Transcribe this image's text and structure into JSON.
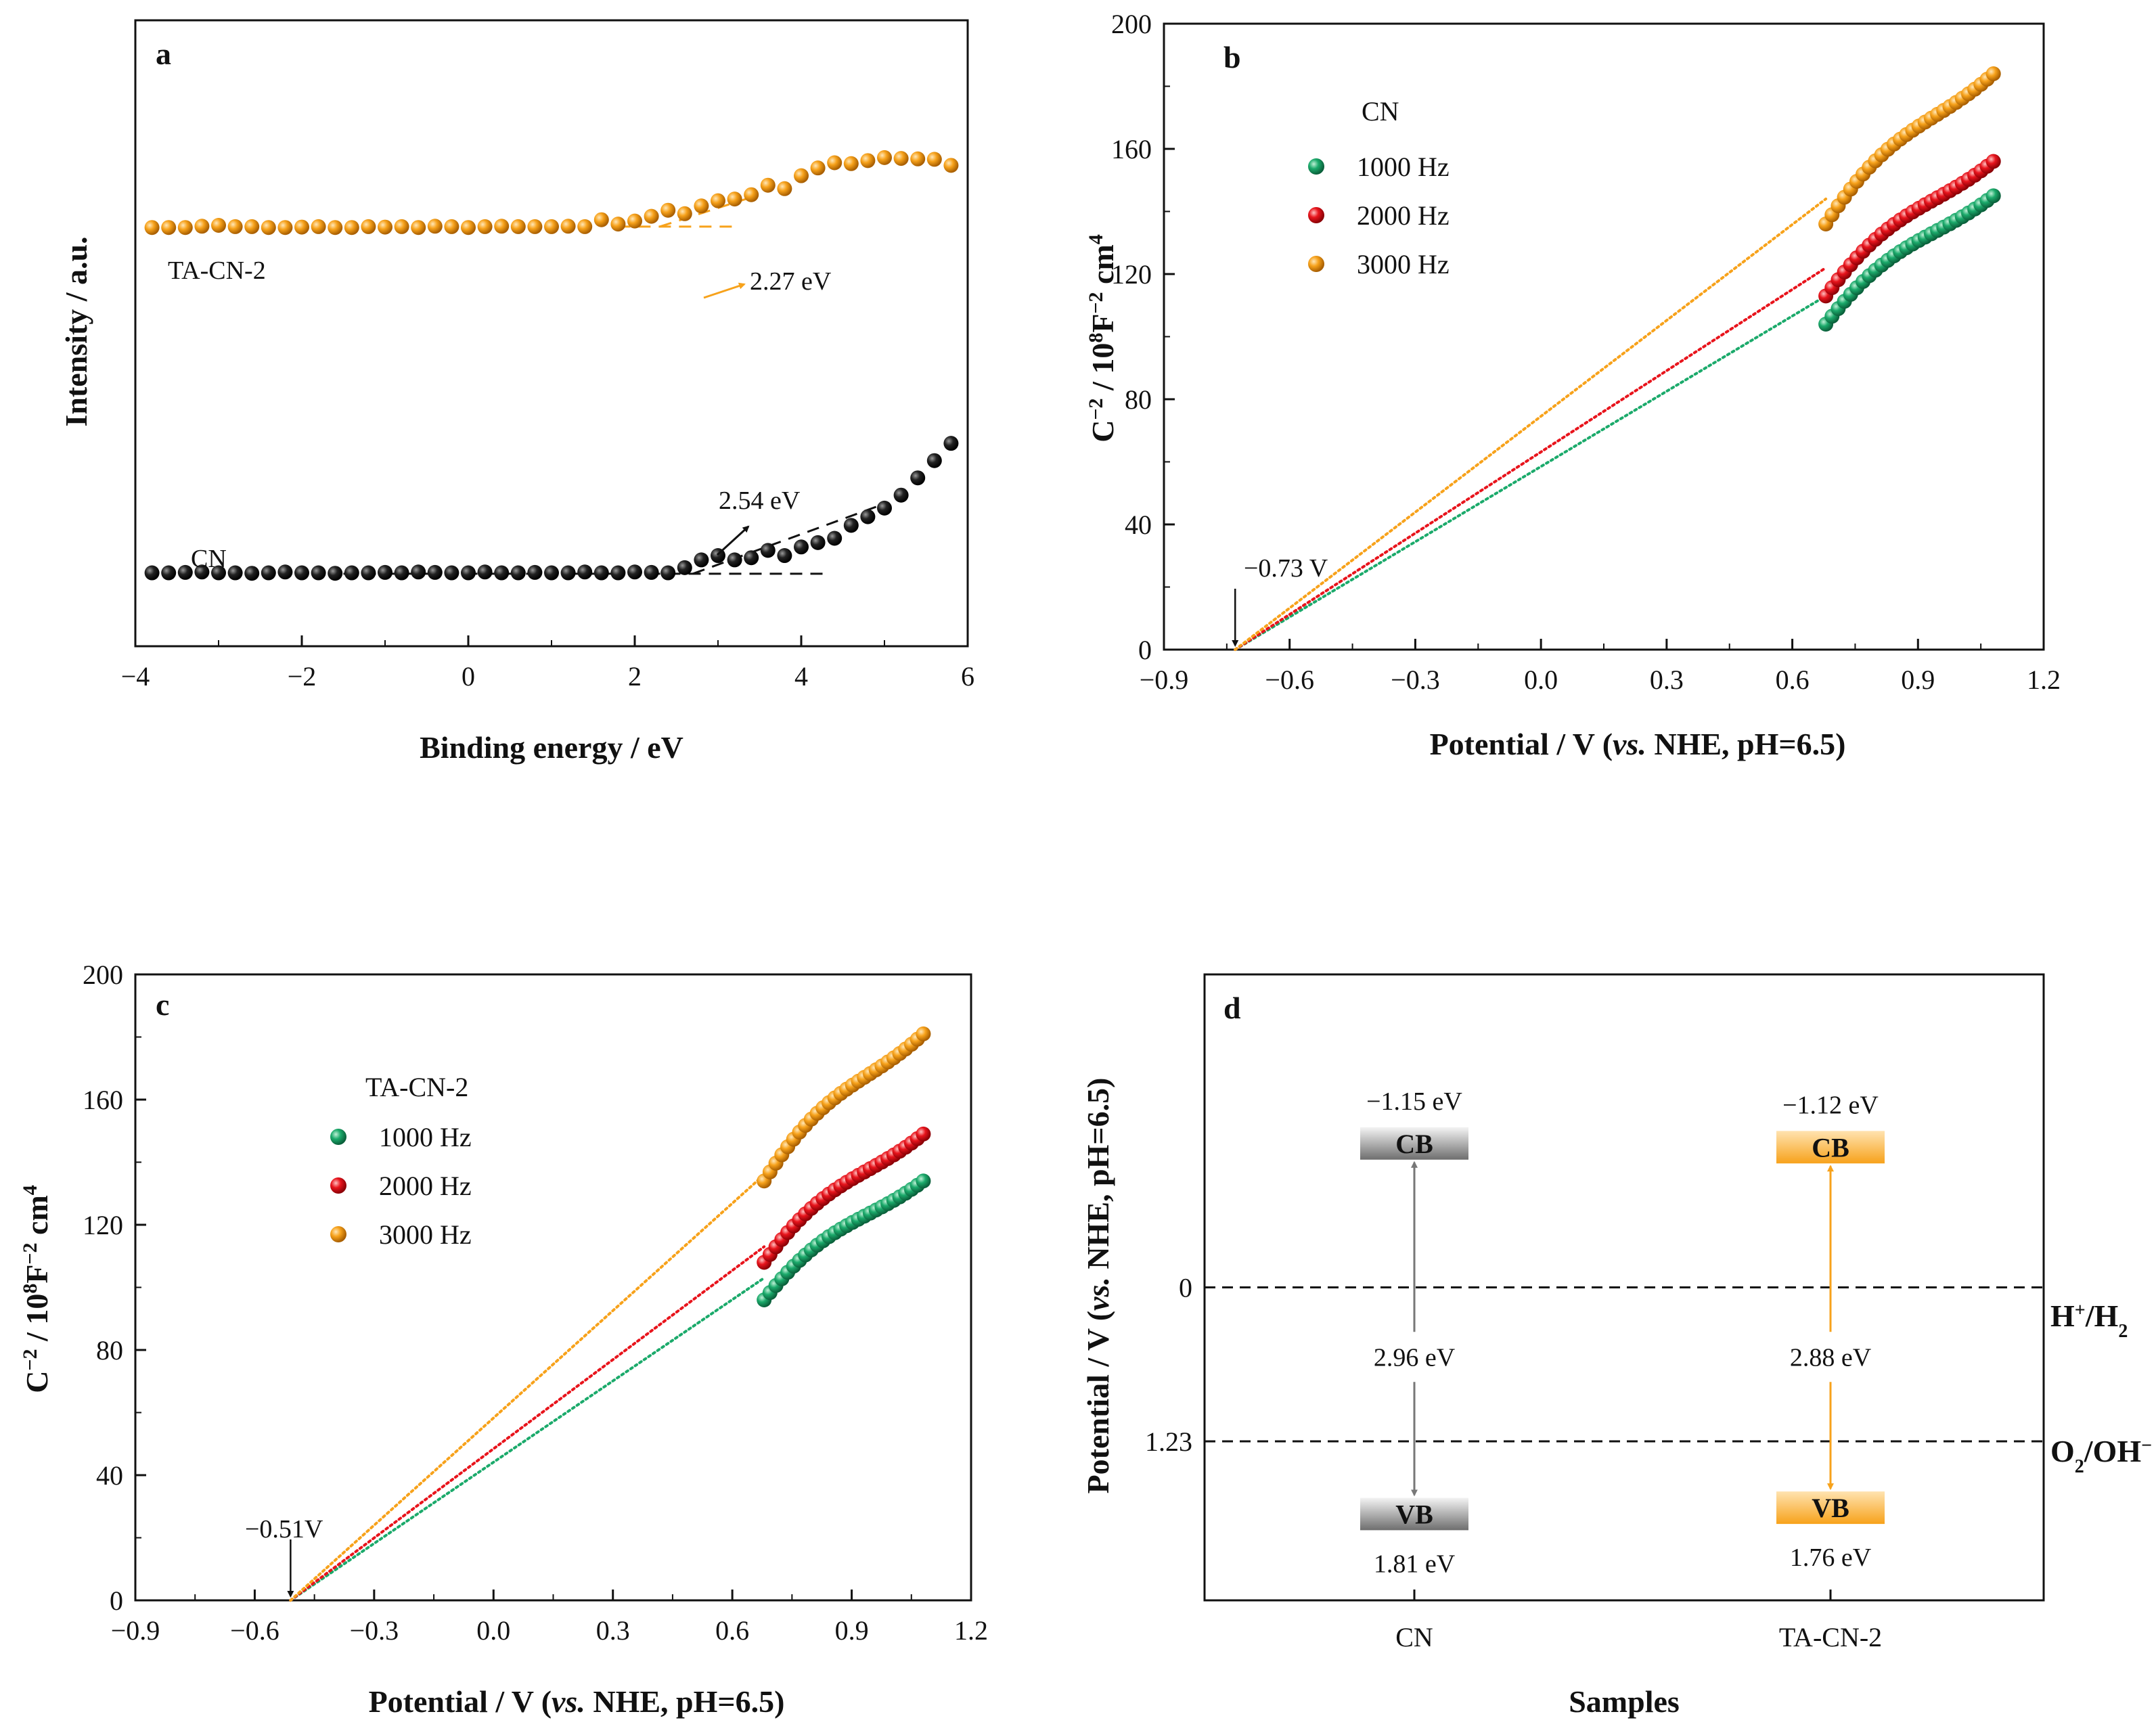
{
  "colors": {
    "cn_black": "#111111",
    "ta_orange": "#F7A21B",
    "green": "#1BAA6B",
    "red": "#E8141C",
    "orange": "#F7A21B",
    "cn_band": "#8c8c8c",
    "ta_band": "#F7A21B"
  },
  "chart_data": [
    {
      "id": "a",
      "type": "scatter",
      "panel_letter": "a",
      "xlabel": "Binding energy / eV",
      "ylabel": "Intensity / a.u.",
      "xlim": [
        -4,
        6
      ],
      "ylim": [
        -0.15,
        1.3
      ],
      "xticks": [
        "−4",
        "−2",
        "0",
        "2",
        "4",
        "6"
      ],
      "xtick_values": [
        -4,
        -2,
        0,
        2,
        4,
        6
      ],
      "series": [
        {
          "name": "TA-CN-2",
          "label": "TA-CN-2",
          "color": "orange",
          "x": [
            -3.8,
            -3.6,
            -3.4,
            -3.2,
            -3.0,
            -2.8,
            -2.6,
            -2.4,
            -2.2,
            -2.0,
            -1.8,
            -1.6,
            -1.4,
            -1.2,
            -1.0,
            -0.8,
            -0.6,
            -0.4,
            -0.2,
            0.0,
            0.2,
            0.4,
            0.6,
            0.8,
            1.0,
            1.2,
            1.4,
            1.6,
            1.8,
            2.0,
            2.2,
            2.4,
            2.6,
            2.8,
            3.0,
            3.2,
            3.4,
            3.6,
            3.8,
            4.0,
            4.2,
            4.4,
            4.6,
            4.8,
            5.0,
            5.2,
            5.4,
            5.6,
            5.8
          ],
          "y": [
            0.82,
            0.82,
            0.82,
            0.823,
            0.825,
            0.822,
            0.822,
            0.82,
            0.82,
            0.821,
            0.822,
            0.82,
            0.82,
            0.822,
            0.821,
            0.822,
            0.82,
            0.823,
            0.822,
            0.82,
            0.822,
            0.823,
            0.822,
            0.822,
            0.822,
            0.823,
            0.822,
            0.838,
            0.828,
            0.835,
            0.846,
            0.86,
            0.852,
            0.87,
            0.882,
            0.886,
            0.896,
            0.918,
            0.91,
            0.94,
            0.958,
            0.97,
            0.968,
            0.975,
            0.982,
            0.98,
            0.979,
            0.978,
            0.964
          ],
          "annotation": "2.27 eV",
          "tangent": [
            [
              1.8,
              0.822
            ],
            [
              3.2,
              0.822
            ]
          ],
          "slope": [
            [
              2.3,
              0.822
            ],
            [
              3.4,
              0.89
            ]
          ]
        },
        {
          "name": "CN",
          "label": "CN",
          "color": "cn_black",
          "x": [
            -3.8,
            -3.6,
            -3.4,
            -3.2,
            -3.0,
            -2.8,
            -2.6,
            -2.4,
            -2.2,
            -2.0,
            -1.8,
            -1.6,
            -1.4,
            -1.2,
            -1.0,
            -0.8,
            -0.6,
            -0.4,
            -0.2,
            0.0,
            0.2,
            0.4,
            0.6,
            0.8,
            1.0,
            1.2,
            1.4,
            1.6,
            1.8,
            2.0,
            2.2,
            2.4,
            2.6,
            2.8,
            3.0,
            3.2,
            3.4,
            3.6,
            3.8,
            4.0,
            4.2,
            4.4,
            4.6,
            4.8,
            5.0,
            5.2,
            5.4,
            5.6,
            5.8
          ],
          "y": [
            0.02,
            0.02,
            0.021,
            0.022,
            0.02,
            0.02,
            0.019,
            0.02,
            0.022,
            0.02,
            0.02,
            0.019,
            0.02,
            0.02,
            0.021,
            0.02,
            0.022,
            0.021,
            0.02,
            0.02,
            0.022,
            0.02,
            0.02,
            0.021,
            0.02,
            0.02,
            0.022,
            0.02,
            0.02,
            0.022,
            0.021,
            0.02,
            0.032,
            0.05,
            0.06,
            0.05,
            0.055,
            0.072,
            0.06,
            0.08,
            0.09,
            0.1,
            0.13,
            0.15,
            0.17,
            0.2,
            0.24,
            0.28,
            0.32
          ],
          "annotation": "2.54 eV",
          "tangent": [
            [
              -1.5,
              0.018
            ],
            [
              4.3,
              0.018
            ]
          ],
          "slope": [
            [
              2.7,
              0.018
            ],
            [
              5.0,
              0.18
            ]
          ]
        }
      ]
    },
    {
      "id": "b",
      "type": "scatter",
      "panel_letter": "b",
      "xlabel": "Potential / V (vs. NHE, pH=6.5)",
      "ylabel": "C⁻² / 10⁸F⁻² cm⁴",
      "xlim": [
        -0.9,
        1.2
      ],
      "ylim": [
        0,
        200
      ],
      "xticks": [
        "−0.9",
        "−0.6",
        "−0.3",
        "0.0",
        "0.3",
        "0.6",
        "0.9",
        "1.2"
      ],
      "xtick_values": [
        -0.9,
        -0.6,
        -0.3,
        0.0,
        0.3,
        0.6,
        0.9,
        1.2
      ],
      "yticks": [
        "0",
        "40",
        "80",
        "120",
        "160",
        "200"
      ],
      "ytick_values": [
        0,
        40,
        80,
        120,
        160,
        200
      ],
      "legend_title": "CN",
      "intercept_label": "−0.73 V",
      "intercept": -0.73,
      "series": [
        {
          "name": "1000 Hz",
          "color": "green",
          "x_start": 0.68,
          "x_end": 1.08,
          "y_start": 104,
          "y_end": 145,
          "y_fit_start": 113
        },
        {
          "name": "2000 Hz",
          "color": "red",
          "x_start": 0.68,
          "x_end": 1.08,
          "y_start": 113,
          "y_end": 156,
          "y_fit_start": 122
        },
        {
          "name": "3000 Hz",
          "color": "orange",
          "x_start": 0.68,
          "x_end": 1.08,
          "y_start": 136,
          "y_end": 184,
          "y_fit_start": 144
        }
      ]
    },
    {
      "id": "c",
      "type": "scatter",
      "panel_letter": "c",
      "xlabel": "Potential / V (vs. NHE, pH=6.5)",
      "ylabel": "C⁻² / 10⁸F⁻² cm⁴",
      "xlim": [
        -0.9,
        1.2
      ],
      "ylim": [
        0,
        200
      ],
      "xticks": [
        "−0.9",
        "−0.6",
        "−0.3",
        "0.0",
        "0.3",
        "0.6",
        "0.9",
        "1.2"
      ],
      "xtick_values": [
        -0.9,
        -0.6,
        -0.3,
        0.0,
        0.3,
        0.6,
        0.9,
        1.2
      ],
      "yticks": [
        "0",
        "40",
        "80",
        "120",
        "160",
        "200"
      ],
      "ytick_values": [
        0,
        40,
        80,
        120,
        160,
        200
      ],
      "legend_title": "TA-CN-2",
      "intercept_label": "−0.51V",
      "intercept": -0.51,
      "series": [
        {
          "name": "1000 Hz",
          "color": "green",
          "x_start": 0.68,
          "x_end": 1.08,
          "y_start": 96,
          "y_end": 134,
          "y_fit_start": 103
        },
        {
          "name": "2000 Hz",
          "color": "red",
          "x_start": 0.68,
          "x_end": 1.08,
          "y_start": 108,
          "y_end": 149,
          "y_fit_start": 113
        },
        {
          "name": "3000 Hz",
          "color": "orange",
          "x_start": 0.68,
          "x_end": 1.08,
          "y_start": 134,
          "y_end": 181,
          "y_fit_start": 136
        }
      ]
    },
    {
      "id": "d",
      "type": "band-diagram",
      "panel_letter": "d",
      "xlabel": "Samples",
      "ylabel": "Potential / V (vs. NHE, pH=6.5)",
      "ylim_top": -2.5,
      "ylim_bottom": 2.5,
      "yticks": [
        "0",
        "1.23"
      ],
      "ytick_values": [
        0,
        1.23
      ],
      "categories": [
        "CN",
        "TA-CN-2"
      ],
      "reference_lines": [
        {
          "value": 0,
          "label_main": "H",
          "label_sup": "+",
          "label_mid": "/H",
          "label_sub": "2",
          "label_end": ""
        },
        {
          "value": 1.23,
          "label_main": "O",
          "label_sub": "2",
          "label_mid": "/OH",
          "label_sup": "−",
          "label_end": ""
        }
      ],
      "samples": [
        {
          "name": "CN",
          "color": "cn_band",
          "cb": -1.15,
          "vb": 1.81,
          "cb_label": "−1.15 eV",
          "vb_label": "1.81 eV",
          "gap_label": "2.96 eV",
          "cb_text": "CB",
          "vb_text": "VB"
        },
        {
          "name": "TA-CN-2",
          "color": "ta_band",
          "cb": -1.12,
          "vb": 1.76,
          "cb_label": "−1.12 eV",
          "vb_label": "1.76 eV",
          "gap_label": "2.88 eV",
          "cb_text": "CB",
          "vb_text": "VB"
        }
      ]
    }
  ]
}
